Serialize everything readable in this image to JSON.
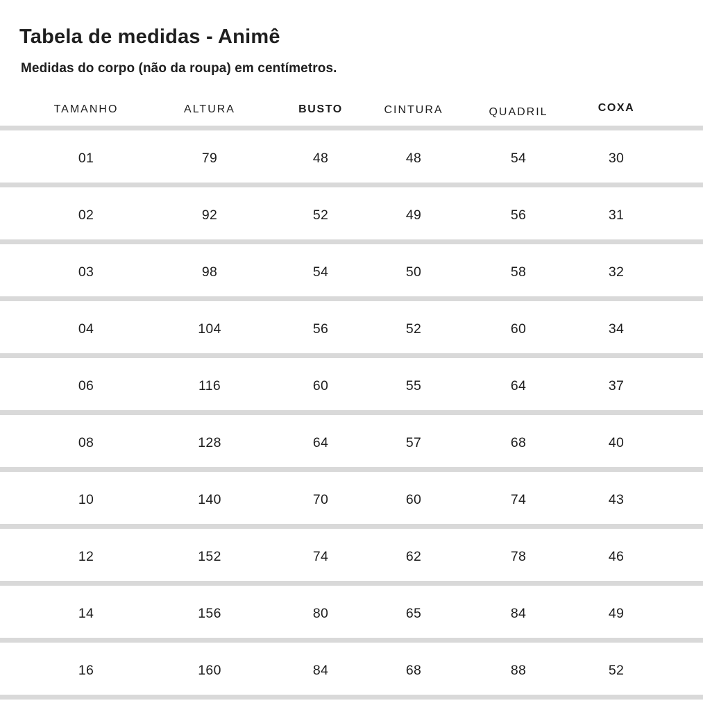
{
  "page": {
    "language": "pt-BR"
  },
  "chart_data": {
    "type": "table",
    "title": "Tabela de medidas - Animê",
    "subtitle": "Medidas do corpo (não da roupa) em centímetros.",
    "unit": "cm",
    "columns": [
      {
        "key": "tamanho",
        "label": "TAMANHO",
        "bold": false
      },
      {
        "key": "altura",
        "label": "ALTURA",
        "bold": false
      },
      {
        "key": "busto",
        "label": "BUSTO",
        "bold": true
      },
      {
        "key": "cintura",
        "label": "CINTURA",
        "bold": false
      },
      {
        "key": "quadril",
        "label": "QUADRIL",
        "bold": false
      },
      {
        "key": "coxa",
        "label": "COXA",
        "bold": true
      }
    ],
    "rows": [
      [
        "01",
        "79",
        "48",
        "48",
        "54",
        "30"
      ],
      [
        "02",
        "92",
        "52",
        "49",
        "56",
        "31"
      ],
      [
        "03",
        "98",
        "54",
        "50",
        "58",
        "32"
      ],
      [
        "04",
        "104",
        "56",
        "52",
        "60",
        "34"
      ],
      [
        "06",
        "116",
        "60",
        "55",
        "64",
        "37"
      ],
      [
        "08",
        "128",
        "64",
        "57",
        "68",
        "40"
      ],
      [
        "10",
        "140",
        "70",
        "60",
        "74",
        "43"
      ],
      [
        "12",
        "152",
        "74",
        "62",
        "78",
        "46"
      ],
      [
        "14",
        "156",
        "80",
        "65",
        "84",
        "49"
      ],
      [
        "16",
        "160",
        "84",
        "68",
        "88",
        "52"
      ]
    ]
  },
  "colors": {
    "background": "#ffffff",
    "text": "#1e1e1e",
    "divider": "#d9d9d9"
  }
}
